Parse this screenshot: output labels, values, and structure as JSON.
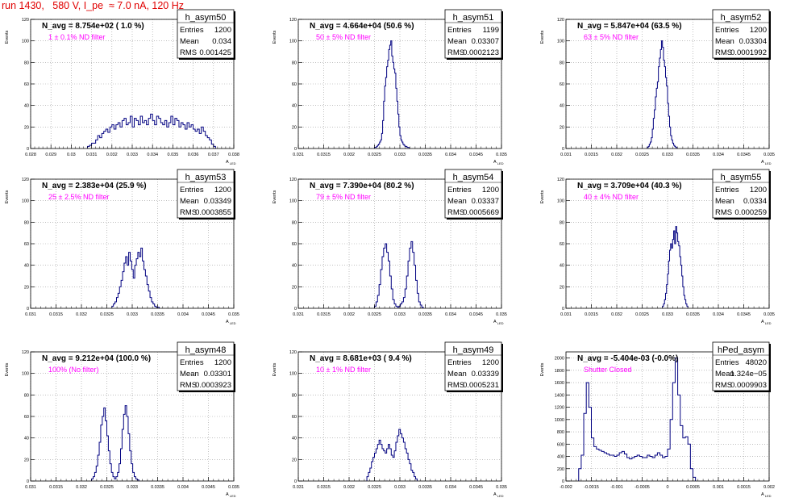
{
  "header": {
    "run_title": "run 1430,   580 V, I_pe  ≈ 7.0 nA, 120 Hz"
  },
  "style": {
    "hist_color": "#000080",
    "label_color": "#ff00ff",
    "title_color": "#e00000",
    "grid_color": "#999999"
  },
  "axis_text": {
    "ylabel": "Events",
    "xlabel": "A LED"
  },
  "stat_labels": {
    "entries": "Entries",
    "mean": "Mean",
    "rms": "RMS"
  },
  "chart_data": [
    {
      "type": "histogram",
      "name": "h_asym50",
      "header": "N_avg = 8.754e+02 ( 1.0 %)",
      "label": "1 ± 0.1% ND filter",
      "stats": {
        "entries": "1200",
        "mean": "0.034",
        "rms": "0.001425"
      },
      "xlim": [
        0.028,
        0.038
      ],
      "ylim": [
        0,
        120
      ],
      "xticks": [
        0.028,
        0.029,
        0.03,
        0.031,
        0.032,
        0.033,
        0.034,
        0.035,
        0.036,
        0.037,
        0.038
      ],
      "xticklabels": [
        "0.028",
        "0.029",
        "0.03",
        "0.031",
        "0.032",
        "0.033",
        "0.034",
        "0.035",
        "0.036",
        "0.037",
        "0.038"
      ],
      "yticks": [
        0,
        20,
        40,
        60,
        80,
        100,
        120
      ],
      "yticklabels": [
        "0",
        "20",
        "40",
        "60",
        "80",
        "100",
        "120"
      ],
      "bins": {
        "start": 0.0308,
        "width": 0.0001,
        "counts": [
          2,
          3,
          5,
          5,
          8,
          12,
          10,
          14,
          16,
          18,
          15,
          20,
          22,
          18,
          22,
          24,
          20,
          26,
          28,
          22,
          24,
          30,
          20,
          28,
          26,
          22,
          30,
          24,
          26,
          22,
          28,
          32,
          26,
          22,
          30,
          28,
          24,
          22,
          26,
          20,
          24,
          30,
          22,
          28,
          26,
          20,
          24,
          22,
          18,
          24,
          20,
          22,
          18,
          16,
          18,
          14,
          20,
          16,
          12,
          10,
          8,
          4,
          2
        ]
      }
    },
    {
      "type": "histogram",
      "name": "h_asym51",
      "header": "N_avg = 4.664e+04 (50.6 %)",
      "label": "50 ± 5% ND filter",
      "stats": {
        "entries": "1199",
        "mean": "0.03307",
        "rms": "0.0002123"
      },
      "xlim": [
        0.031,
        0.035
      ],
      "ylim": [
        0,
        120
      ],
      "xticks": [
        0.031,
        0.0315,
        0.032,
        0.0325,
        0.033,
        0.0335,
        0.034,
        0.0345,
        0.035
      ],
      "xticklabels": [
        "0.031",
        "0.0315",
        "0.032",
        "0.0325",
        "0.033",
        "0.0335",
        "0.034",
        "0.0345",
        "0.035"
      ],
      "yticks": [
        0,
        20,
        40,
        60,
        80,
        100,
        120
      ],
      "yticklabels": [
        "0",
        "20",
        "40",
        "60",
        "80",
        "100",
        "120"
      ],
      "bins": {
        "start": 0.0325,
        "width": 2e-05,
        "counts": [
          1,
          1,
          2,
          3,
          4,
          6,
          8,
          14,
          26,
          44,
          58,
          66,
          76,
          82,
          92,
          96,
          100,
          86,
          80,
          74,
          70,
          56,
          44,
          32,
          20,
          12,
          8,
          6,
          4,
          3,
          2,
          2,
          1,
          1
        ]
      }
    },
    {
      "type": "histogram",
      "name": "h_asym52",
      "header": "N_avg = 5.847e+04 (63.5 %)",
      "label": "63 ± 5% ND filter",
      "stats": {
        "entries": "1200",
        "mean": "0.03304",
        "rms": "0.0001992"
      },
      "xlim": [
        0.031,
        0.035
      ],
      "ylim": [
        0,
        120
      ],
      "xticks": [
        0.031,
        0.0315,
        0.032,
        0.0325,
        0.033,
        0.0335,
        0.034,
        0.0345,
        0.035
      ],
      "xticklabels": [
        "0.031",
        "0.0315",
        "0.032",
        "0.0325",
        "0.033",
        "0.0335",
        "0.034",
        "0.0345",
        "0.035"
      ],
      "yticks": [
        0,
        20,
        40,
        60,
        80,
        100,
        120
      ],
      "yticklabels": [
        "0",
        "20",
        "40",
        "60",
        "80",
        "100",
        "120"
      ],
      "bins": {
        "start": 0.0326,
        "width": 2e-05,
        "counts": [
          1,
          2,
          4,
          6,
          10,
          18,
          28,
          36,
          48,
          56,
          62,
          76,
          84,
          92,
          100,
          94,
          82,
          76,
          66,
          58,
          42,
          30,
          20,
          12,
          8,
          5,
          3,
          2,
          1
        ]
      }
    },
    {
      "type": "histogram",
      "name": "h_asym53",
      "header": "N_avg = 2.383e+04 (25.9 %)",
      "label": "25 ± 2.5% ND filter",
      "stats": {
        "entries": "1200",
        "mean": "0.03349",
        "rms": "0.0003855"
      },
      "xlim": [
        0.031,
        0.035
      ],
      "ylim": [
        0,
        120
      ],
      "xticks": [
        0.031,
        0.0315,
        0.032,
        0.0325,
        0.033,
        0.0335,
        0.034,
        0.0345,
        0.035
      ],
      "xticklabels": [
        "0.031",
        "0.0315",
        "0.032",
        "0.0325",
        "0.033",
        "0.0335",
        "0.034",
        "0.0345",
        "0.035"
      ],
      "yticks": [
        0,
        20,
        40,
        60,
        80,
        100,
        120
      ],
      "yticklabels": [
        "0",
        "20",
        "40",
        "60",
        "80",
        "100",
        "120"
      ],
      "bins": {
        "start": 0.0326,
        "width": 3e-05,
        "counts": [
          2,
          4,
          6,
          10,
          14,
          20,
          26,
          34,
          42,
          48,
          40,
          52,
          44,
          36,
          28,
          40,
          46,
          52,
          48,
          56,
          44,
          36,
          30,
          22,
          16,
          10,
          6,
          4,
          2,
          1,
          1
        ]
      }
    },
    {
      "type": "histogram",
      "name": "h_asym54",
      "header": "N_avg = 7.390e+04 (80.2 %)",
      "label": "79 ± 5% ND filter",
      "stats": {
        "entries": "1200",
        "mean": "0.03337",
        "rms": "0.0005669"
      },
      "xlim": [
        0.031,
        0.035
      ],
      "ylim": [
        0,
        120
      ],
      "xticks": [
        0.031,
        0.0315,
        0.032,
        0.0325,
        0.033,
        0.0335,
        0.034,
        0.0345,
        0.035
      ],
      "xticklabels": [
        "0.031",
        "0.0315",
        "0.032",
        "0.0325",
        "0.033",
        "0.0335",
        "0.034",
        "0.0345",
        "0.035"
      ],
      "yticks": [
        0,
        20,
        40,
        60,
        80,
        100,
        120
      ],
      "yticklabels": [
        "0",
        "20",
        "40",
        "60",
        "80",
        "100",
        "120"
      ],
      "bins": {
        "start": 0.0325,
        "width": 3e-05,
        "counts": [
          2,
          6,
          12,
          22,
          36,
          48,
          56,
          60,
          52,
          44,
          30,
          18,
          8,
          4,
          2,
          1,
          2,
          4,
          6,
          10,
          18,
          30,
          44,
          56,
          62,
          52,
          40,
          26,
          14,
          6,
          3,
          1
        ]
      }
    },
    {
      "type": "histogram",
      "name": "h_asym55",
      "header": "N_avg = 3.709e+04 (40.3 %)",
      "label": "40 ± 4% ND filter",
      "stats": {
        "entries": "1200",
        "mean": "0.0334",
        "rms": "0.000259"
      },
      "xlim": [
        0.031,
        0.035
      ],
      "ylim": [
        0,
        120
      ],
      "xticks": [
        0.031,
        0.0315,
        0.032,
        0.0325,
        0.033,
        0.0335,
        0.034,
        0.0345,
        0.035
      ],
      "xticklabels": [
        "0.031",
        "0.0315",
        "0.032",
        "0.0325",
        "0.033",
        "0.0335",
        "0.034",
        "0.0345",
        "0.035"
      ],
      "yticks": [
        0,
        20,
        40,
        60,
        80,
        100,
        120
      ],
      "yticklabels": [
        "0",
        "20",
        "40",
        "60",
        "80",
        "100",
        "120"
      ],
      "bins": {
        "start": 0.0329,
        "width": 2e-05,
        "counts": [
          2,
          4,
          8,
          14,
          22,
          32,
          44,
          54,
          60,
          56,
          64,
          72,
          60,
          76,
          70,
          62,
          58,
          48,
          40,
          30,
          20,
          12,
          8,
          4,
          2
        ]
      }
    },
    {
      "type": "histogram",
      "name": "h_asym48",
      "header": "N_avg = 9.212e+04 (100.0 %)",
      "label": "100% (No filter)",
      "stats": {
        "entries": "1200",
        "mean": "0.03301",
        "rms": "0.0003923"
      },
      "xlim": [
        0.031,
        0.035
      ],
      "ylim": [
        0,
        120
      ],
      "xticks": [
        0.031,
        0.0315,
        0.032,
        0.0325,
        0.033,
        0.0335,
        0.034,
        0.0345,
        0.035
      ],
      "xticklabels": [
        "0.031",
        "0.0315",
        "0.032",
        "0.0325",
        "0.033",
        "0.0335",
        "0.034",
        "0.0345",
        "0.035"
      ],
      "yticks": [
        0,
        20,
        40,
        60,
        80,
        100,
        120
      ],
      "yticklabels": [
        "0",
        "20",
        "40",
        "60",
        "80",
        "100",
        "120"
      ],
      "bins": {
        "start": 0.0322,
        "width": 3e-05,
        "counts": [
          2,
          4,
          8,
          14,
          24,
          36,
          52,
          60,
          68,
          56,
          42,
          28,
          16,
          8,
          4,
          2,
          4,
          8,
          16,
          30,
          48,
          62,
          70,
          60,
          44,
          28,
          16,
          8,
          4,
          2,
          1
        ]
      }
    },
    {
      "type": "histogram",
      "name": "h_asym49",
      "header": "N_avg = 8.681e+03 ( 9.4 %)",
      "label": "10 ± 1% ND filter",
      "stats": {
        "entries": "1200",
        "mean": "0.03339",
        "rms": "0.0005231"
      },
      "xlim": [
        0.031,
        0.035
      ],
      "ylim": [
        0,
        120
      ],
      "xticks": [
        0.031,
        0.0315,
        0.032,
        0.0325,
        0.033,
        0.0335,
        0.034,
        0.0345,
        0.035
      ],
      "xticklabels": [
        "0.031",
        "0.0315",
        "0.032",
        "0.0325",
        "0.033",
        "0.0335",
        "0.034",
        "0.0345",
        "0.035"
      ],
      "yticks": [
        0,
        20,
        40,
        60,
        80,
        100,
        120
      ],
      "yticklabels": [
        "0",
        "20",
        "40",
        "60",
        "80",
        "100",
        "120"
      ],
      "bins": {
        "start": 0.03235,
        "width": 3e-05,
        "counts": [
          4,
          8,
          12,
          18,
          22,
          26,
          30,
          34,
          38,
          34,
          30,
          28,
          26,
          30,
          34,
          30,
          24,
          22,
          28,
          36,
          42,
          48,
          44,
          40,
          36,
          30,
          26,
          20,
          16,
          10,
          8,
          4,
          2
        ]
      }
    },
    {
      "type": "histogram",
      "name": "hPed_asym",
      "header": "N_avg = -5.404e-03 (-0.0%)",
      "label": "Shutter Closed",
      "stats": {
        "entries": "48020",
        "mean": "1.324e−05",
        "rms": "0.0009903"
      },
      "xlim": [
        -0.002,
        0.002
      ],
      "ylim": [
        0,
        2100
      ],
      "xticks": [
        -0.002,
        -0.0015,
        -0.001,
        -0.0005,
        0,
        0.0005,
        0.001,
        0.0015,
        0.002
      ],
      "xticklabels": [
        "-0.002",
        "-0.0015",
        "-0.001",
        "-0.0005",
        "0",
        "0.0005",
        "0.001",
        "0.0015",
        "0.002"
      ],
      "yticks": [
        0,
        200,
        400,
        600,
        800,
        1000,
        1200,
        1400,
        1600,
        1800,
        2000
      ],
      "yticklabels": [
        "0",
        "200",
        "400",
        "600",
        "800",
        "1000",
        "1200",
        "1400",
        "1600",
        "1800",
        "2000"
      ],
      "bins": {
        "start": -0.00175,
        "width": 5e-05,
        "counts": [
          200,
          420,
          1100,
          1600,
          1200,
          700,
          560,
          520,
          500,
          480,
          460,
          440,
          420,
          420,
          400,
          420,
          460,
          480,
          440,
          380,
          360,
          380,
          400,
          420,
          400,
          380,
          380,
          420,
          400,
          380,
          420,
          460,
          420,
          380,
          400,
          520,
          1000,
          1600,
          2000,
          1400,
          900,
          700,
          720,
          600,
          200,
          60
        ]
      }
    }
  ]
}
